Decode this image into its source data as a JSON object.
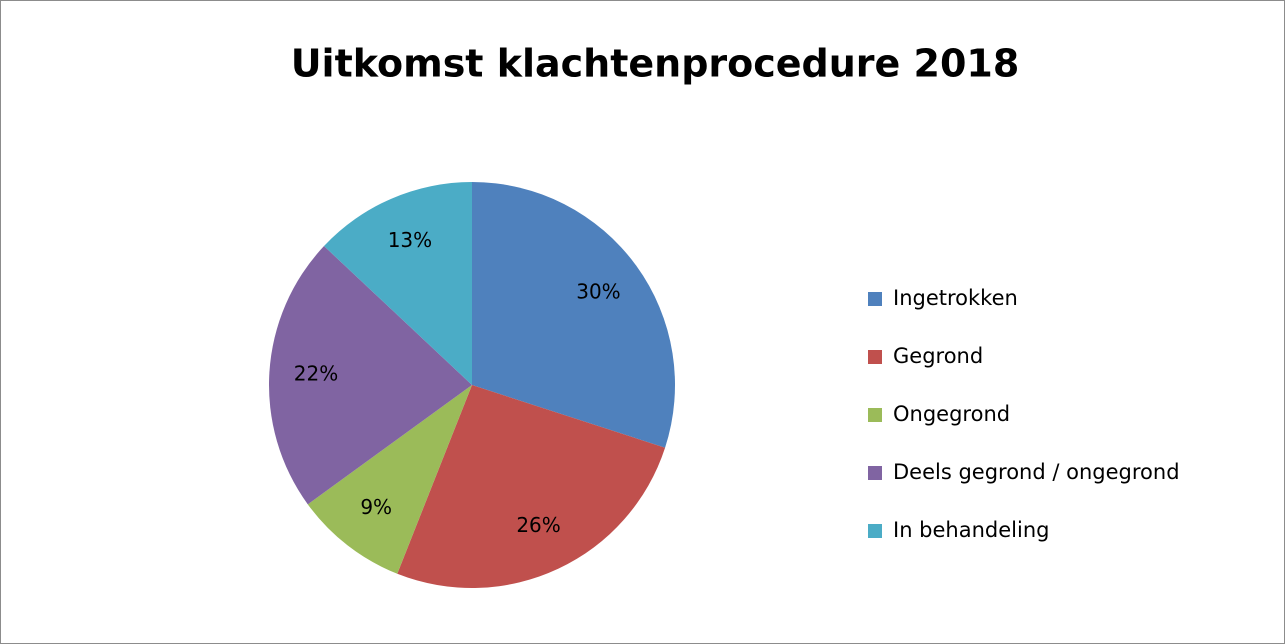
{
  "chart_data": {
    "type": "pie",
    "title": "Uitkomst klachtenprocedure 2018",
    "categories": [
      "Ingetrokken",
      "Gegrond",
      "Ongegrond",
      "Deels gegrond / ongegrond",
      "In behandeling"
    ],
    "values": [
      30,
      26,
      9,
      22,
      13
    ],
    "value_labels": [
      "30%",
      "26%",
      "9%",
      "22%",
      "13%"
    ],
    "colors": [
      "#4f81bd",
      "#c0504d",
      "#9bbb59",
      "#8064a2",
      "#4bacc6"
    ],
    "legend": "right"
  }
}
